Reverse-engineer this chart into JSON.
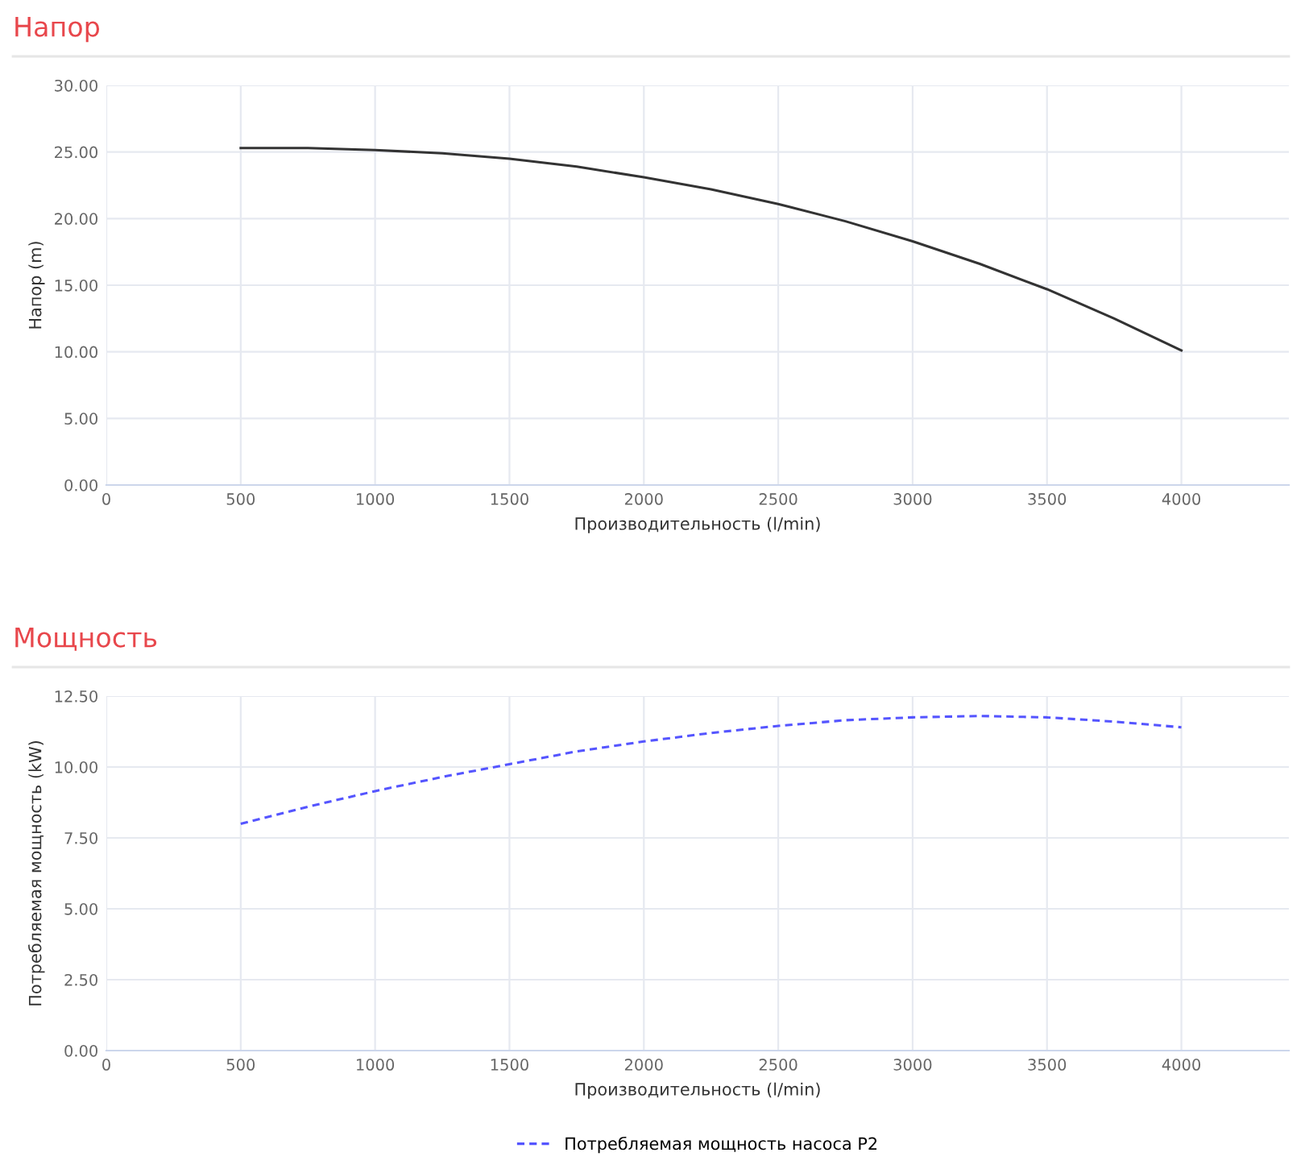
{
  "chart_data": [
    {
      "type": "line",
      "title": "Напор",
      "xlabel": "Производительность (l/min)",
      "ylabel": "Напор (m)",
      "x": [
        500,
        750,
        1000,
        1250,
        1500,
        1750,
        2000,
        2250,
        2500,
        2750,
        3000,
        3250,
        3500,
        3750,
        4000
      ],
      "series": [
        {
          "color": "#333333",
          "values": [
            25.3,
            25.3,
            25.15,
            24.9,
            24.5,
            23.9,
            23.1,
            22.2,
            21.1,
            19.8,
            18.3,
            16.6,
            14.7,
            12.5,
            10.1
          ]
        }
      ],
      "xlim": [
        0,
        4400
      ],
      "xticks": [
        0,
        500,
        1000,
        1500,
        2000,
        2500,
        3000,
        3500,
        4000
      ],
      "ylim": [
        0,
        30
      ],
      "yticks": [
        {
          "value": 0,
          "label": "0.00"
        },
        {
          "value": 5,
          "label": "5.00"
        },
        {
          "value": 10,
          "label": "10.00"
        },
        {
          "value": 15,
          "label": "15.00"
        },
        {
          "value": 20,
          "label": "20.00"
        },
        {
          "value": 25,
          "label": "25.00"
        },
        {
          "value": 30,
          "label": "30.00"
        }
      ],
      "grid": true,
      "line_style": "solid",
      "marker": "none"
    },
    {
      "type": "line",
      "title": "Мощность",
      "xlabel": "Производительность (l/min)",
      "ylabel": "Потребляемая мощность (kW)",
      "x": [
        500,
        750,
        1000,
        1250,
        1500,
        1750,
        2000,
        2250,
        2500,
        2750,
        3000,
        3250,
        3500,
        3750,
        4000
      ],
      "series": [
        {
          "name": "Потребляемая мощность насоса P2",
          "color": "#5555ff",
          "values": [
            8.0,
            8.6,
            9.15,
            9.65,
            10.1,
            10.55,
            10.9,
            11.2,
            11.45,
            11.65,
            11.75,
            11.8,
            11.75,
            11.6,
            11.4
          ]
        }
      ],
      "xlim": [
        0,
        4400
      ],
      "xticks": [
        0,
        500,
        1000,
        1500,
        2000,
        2500,
        3000,
        3500,
        4000
      ],
      "ylim": [
        0,
        12.5
      ],
      "yticks": [
        {
          "value": 0,
          "label": "0.00"
        },
        {
          "value": 2.5,
          "label": "2.50"
        },
        {
          "value": 5,
          "label": "5.00"
        },
        {
          "value": 7.5,
          "label": "7.50"
        },
        {
          "value": 10,
          "label": "10.00"
        },
        {
          "value": 12.5,
          "label": "12.50"
        }
      ],
      "grid": true,
      "line_style": "dashed",
      "marker": "none",
      "legend": "bottom"
    }
  ]
}
